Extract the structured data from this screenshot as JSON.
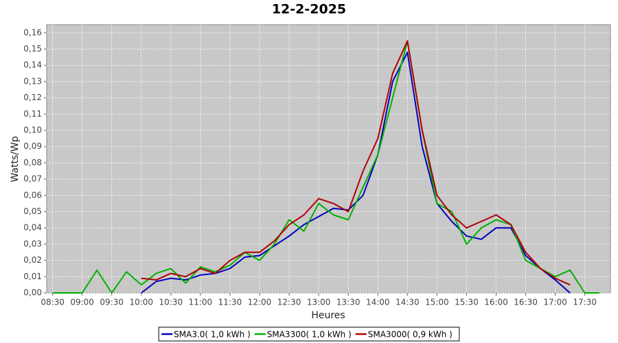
{
  "chart_data": {
    "type": "line",
    "title": "12-2-2025",
    "x_label": "Heures",
    "y_label": "Watts/Wp",
    "x": [
      "08:30",
      "08:45",
      "09:00",
      "09:15",
      "09:30",
      "09:45",
      "10:00",
      "10:15",
      "10:30",
      "10:45",
      "11:00",
      "11:15",
      "11:30",
      "11:45",
      "12:00",
      "12:15",
      "12:30",
      "12:45",
      "13:00",
      "13:15",
      "13:30",
      "13:45",
      "14:00",
      "14:15",
      "14:30",
      "14:45",
      "15:00",
      "15:15",
      "15:30",
      "15:45",
      "16:00",
      "16:15",
      "16:30",
      "16:45",
      "17:00",
      "17:15",
      "17:30",
      "17:45"
    ],
    "series": [
      {
        "name": "SMA3.0( 1,0 kWh )",
        "color": "#0000c0",
        "values": [
          null,
          null,
          null,
          null,
          null,
          null,
          0.0,
          0.007,
          0.009,
          0.008,
          0.011,
          0.012,
          0.015,
          0.022,
          0.023,
          0.029,
          0.035,
          0.042,
          0.047,
          0.052,
          0.051,
          0.06,
          0.085,
          0.13,
          0.148,
          0.09,
          0.055,
          0.044,
          0.035,
          0.033,
          0.04,
          0.04,
          0.023,
          0.015,
          0.008,
          0.0,
          null,
          null
        ]
      },
      {
        "name": "SMA3300( 1,0 kWh )",
        "color": "#00b000",
        "values": [
          0.0,
          0.0,
          0.0,
          0.014,
          0.0,
          0.013,
          0.005,
          0.012,
          0.015,
          0.006,
          0.016,
          0.013,
          0.017,
          0.025,
          0.02,
          0.03,
          0.045,
          0.038,
          0.055,
          0.048,
          0.045,
          0.065,
          0.085,
          0.12,
          0.155,
          0.1,
          0.055,
          0.05,
          0.03,
          0.04,
          0.045,
          0.042,
          0.02,
          0.015,
          0.01,
          0.014,
          0.0,
          0.0
        ]
      },
      {
        "name": "SMA3000( 0,9 kWh )",
        "color": "#b00000",
        "values": [
          null,
          null,
          null,
          null,
          null,
          null,
          0.009,
          0.008,
          0.012,
          0.01,
          0.015,
          0.012,
          0.02,
          0.025,
          0.025,
          0.032,
          0.042,
          0.048,
          0.058,
          0.055,
          0.05,
          0.075,
          0.095,
          0.135,
          0.155,
          0.1,
          0.06,
          0.048,
          0.04,
          0.044,
          0.048,
          0.042,
          0.025,
          0.015,
          0.009,
          0.005,
          null,
          null
        ]
      }
    ],
    "xlim": [
      "08:24",
      "17:56"
    ],
    "xticks": [
      "08:30",
      "09:00",
      "09:30",
      "10:00",
      "10:30",
      "11:00",
      "11:30",
      "12:00",
      "12:30",
      "13:00",
      "13:30",
      "14:00",
      "14:30",
      "15:00",
      "15:30",
      "16:00",
      "16:30",
      "17:00",
      "17:30"
    ],
    "ylim": [
      0,
      0.165
    ],
    "yticks": [
      {
        "value": 0,
        "label": "0,00"
      },
      {
        "value": 0.01,
        "label": "0,01"
      },
      {
        "value": 0.02,
        "label": "0,02"
      },
      {
        "value": 0.03,
        "label": "0,03"
      },
      {
        "value": 0.04,
        "label": "0,04"
      },
      {
        "value": 0.05,
        "label": "0,05"
      },
      {
        "value": 0.06,
        "label": "0,06"
      },
      {
        "value": 0.07,
        "label": "0,07"
      },
      {
        "value": 0.08,
        "label": "0,08"
      },
      {
        "value": 0.09,
        "label": "0,09"
      },
      {
        "value": 0.1,
        "label": "0,10"
      },
      {
        "value": 0.11,
        "label": "0,11"
      },
      {
        "value": 0.12,
        "label": "0,12"
      },
      {
        "value": 0.13,
        "label": "0,13"
      },
      {
        "value": 0.14,
        "label": "0,14"
      },
      {
        "value": 0.15,
        "label": "0,15"
      },
      {
        "value": 0.16,
        "label": "0,16"
      }
    ],
    "grid": true,
    "legend": "bottom"
  }
}
